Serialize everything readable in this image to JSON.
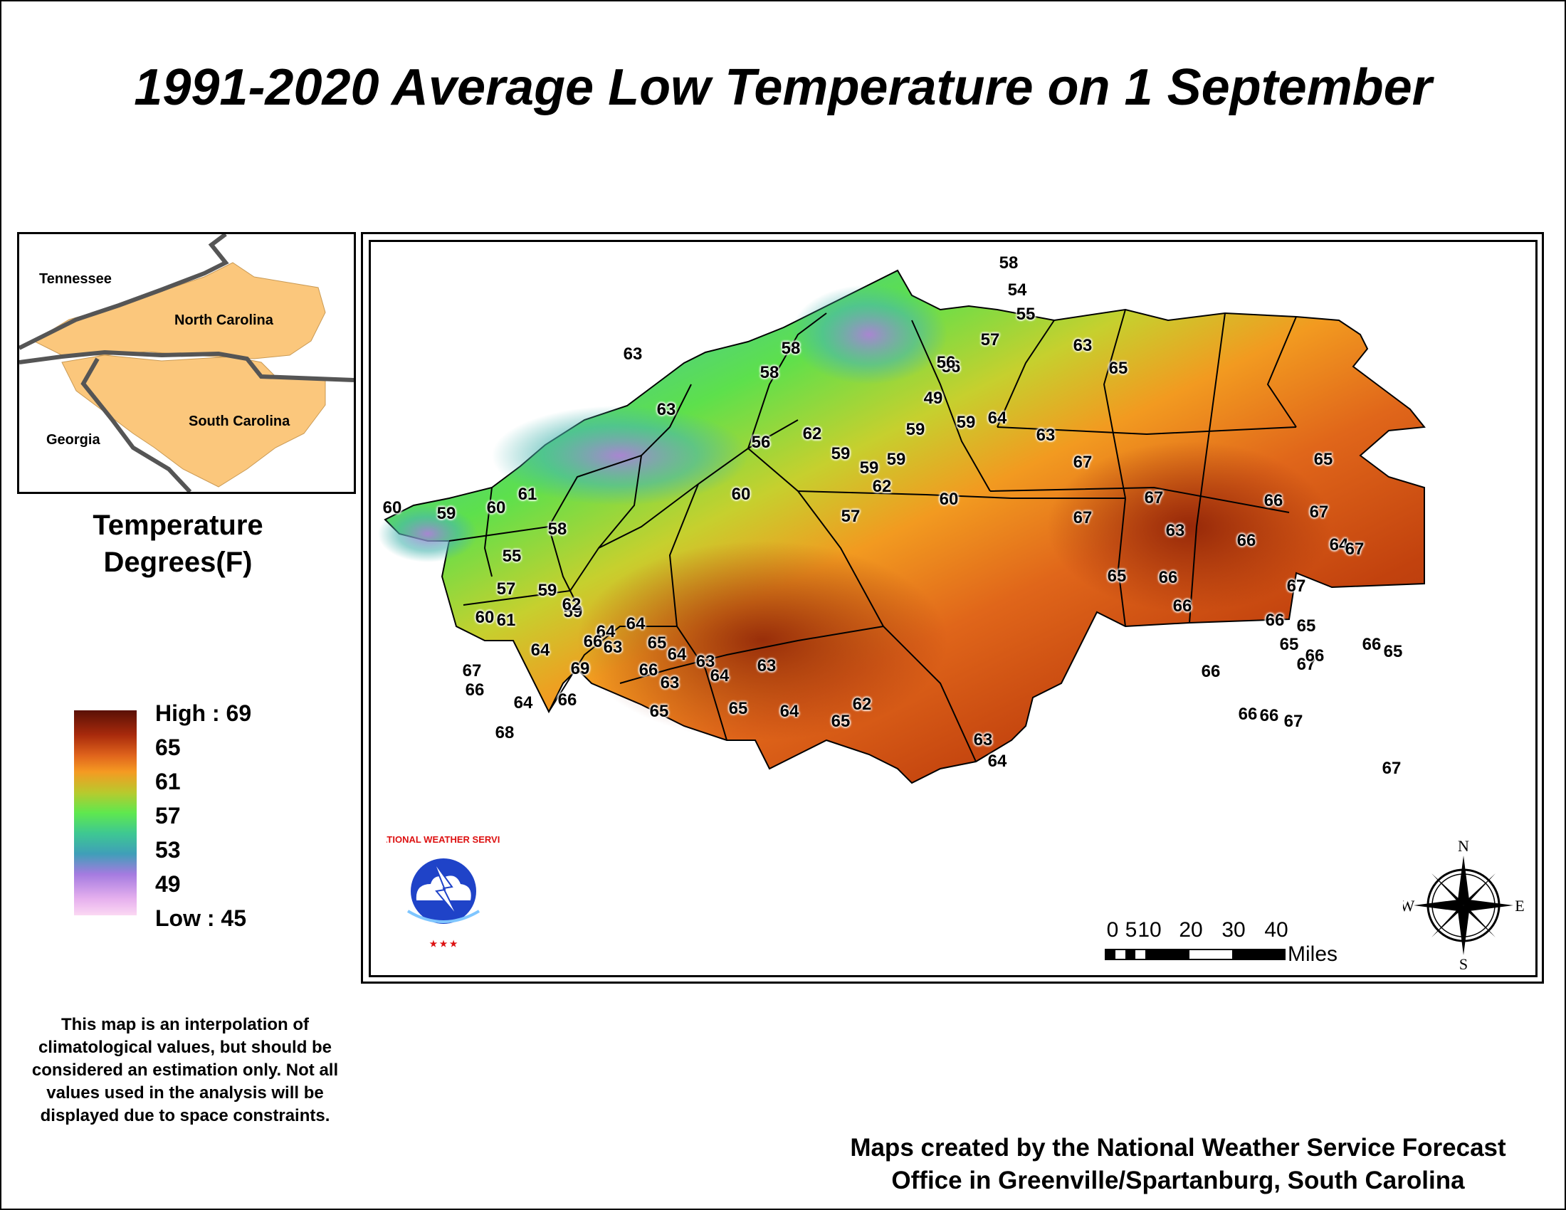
{
  "title": "1991-2020 Average Low Temperature on 1 September",
  "inset": {
    "labels": {
      "tennessee": "Tennessee",
      "north_carolina": "North Carolina",
      "georgia": "Georgia",
      "south_carolina": "South Carolina"
    }
  },
  "legend": {
    "title_line1": "Temperature",
    "title_line2": "Degrees(F)",
    "high_label": "High : 69",
    "low_label": "Low : 45",
    "ticks": [
      "65",
      "61",
      "57",
      "53",
      "49"
    ],
    "colors": [
      "#5a1006",
      "#a82a0c",
      "#e0641c",
      "#f59a22",
      "#b9c92d",
      "#5fe84e",
      "#3ec892",
      "#3f9fb8",
      "#a57be0",
      "#fbd8f3"
    ]
  },
  "disclaimer": "This map is an interpolation of climatological values, but should be considered an estimation only. Not all values used in the analysis will be displayed due to space constraints.",
  "credit_line1": "Maps created by the National Weather Service Forecast",
  "credit_line2": "Office in Greenville/Spartanburg, South Carolina",
  "scale_bar": {
    "numbers": [
      "0",
      "5",
      "10",
      "20",
      "30",
      "40"
    ],
    "unit": "Miles"
  },
  "compass": {
    "n": "N",
    "s": "S",
    "e": "E",
    "w": "W"
  },
  "logo": {
    "text": "NATIONAL WEATHER SERVICE"
  },
  "chart_data": {
    "type": "map",
    "values": [
      "58",
      "54",
      "55",
      "57",
      "63",
      "58",
      "56",
      "49",
      "56",
      "59",
      "59",
      "59",
      "64",
      "63",
      "63",
      "58",
      "62",
      "59",
      "60",
      "59",
      "62",
      "57",
      "56",
      "63",
      "60",
      "60",
      "59",
      "60",
      "61",
      "58",
      "55",
      "57",
      "59",
      "59",
      "60",
      "61",
      "64",
      "62",
      "64",
      "63",
      "64",
      "67",
      "66",
      "64",
      "68",
      "66",
      "69",
      "66",
      "65",
      "66",
      "64",
      "63",
      "63",
      "65",
      "64",
      "65",
      "63",
      "64",
      "65",
      "62",
      "63",
      "64",
      "65",
      "67",
      "67",
      "67",
      "65",
      "66",
      "66",
      "66",
      "65",
      "67",
      "66",
      "65",
      "66",
      "66",
      "66",
      "67",
      "67",
      "67",
      "65",
      "67",
      "66",
      "66",
      "63",
      "64",
      "67",
      "66",
      "65"
    ]
  }
}
